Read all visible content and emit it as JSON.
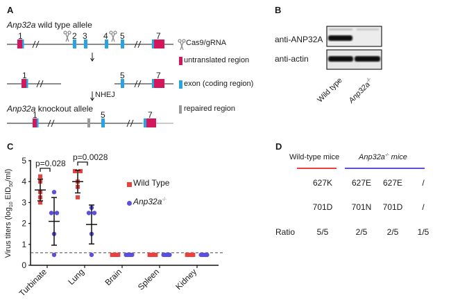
{
  "colors": {
    "utr": "#d4175c",
    "exon": "#2aa4e0",
    "repaired": "#9a9a9a",
    "wild_type": "#e8413e",
    "knockout": "#5a4fe0",
    "line": "#1a1a1a",
    "scissors": "#8c8c8c"
  },
  "panel_a": {
    "letter": "A",
    "wt_title_gene": "Anp32a",
    "wt_title_rest": " wild type allele",
    "ko_title_gene": "Anp32a",
    "ko_title_rest": " knockout allele",
    "nhej_label": "NHEJ",
    "wt_exon_labels": [
      "1",
      "2",
      "3",
      "4",
      "5",
      "7"
    ],
    "cut_exon_labels": [
      "1",
      "5",
      "7"
    ],
    "ko_exon_labels": [
      "1",
      "5",
      "7"
    ],
    "legend": [
      {
        "icon": "scissors-icon",
        "label": "Cas9/gRNA"
      },
      {
        "icon": "utr-swatch",
        "label": "untranslated region"
      },
      {
        "icon": "exon-swatch",
        "label": "exon (coding region)"
      },
      {
        "icon": "repaired-swatch",
        "label": "repaired region"
      }
    ]
  },
  "panel_b": {
    "letter": "B",
    "rows": [
      "anti-ANP32A",
      "anti-actin"
    ],
    "lanes": [
      "Wild type",
      "Anp32a"
    ],
    "lane2_superscript": "-/-"
  },
  "chart_data": {
    "type": "scatter",
    "title": "",
    "xlabel": "",
    "ylabel_prefix": "Virus titers (log",
    "ylabel_sub1": "10",
    "ylabel_mid": " EID",
    "ylabel_sub2": "50",
    "ylabel_suffix": "/ml)",
    "ylim": [
      0,
      5
    ],
    "yticks": [
      "0",
      "1",
      "2",
      "3",
      "4",
      "5"
    ],
    "categories": [
      "Turbinate",
      "Lung",
      "Brain",
      "Spleen",
      "Kidney"
    ],
    "detection_limit": 0.6,
    "legend_placement": "right",
    "series": [
      {
        "name": "Wild Type",
        "marker": "square",
        "points": [
          [
            3.0,
            3.25,
            3.5,
            4.0,
            4.25
          ],
          [
            3.25,
            3.75,
            4.0,
            4.5,
            4.5
          ],
          [
            0.5,
            0.5,
            0.5,
            0.5,
            0.5
          ],
          [
            0.5,
            0.5,
            0.5,
            0.5,
            0.5
          ],
          [
            0.5,
            0.5,
            0.5,
            0.5,
            0.5
          ]
        ],
        "mean": [
          3.6,
          4.0,
          null,
          null,
          null
        ],
        "sd": [
          0.52,
          0.54,
          null,
          null,
          null
        ]
      },
      {
        "name": "Anp32a",
        "name_superscript": "-/-",
        "marker": "circle",
        "points": [
          [
            0.5,
            1.5,
            2.5,
            2.5,
            3.5
          ],
          [
            0.5,
            1.5,
            2.5,
            2.5,
            2.75
          ],
          [
            0.5,
            0.5,
            0.5,
            0.5,
            0.5
          ],
          [
            0.5,
            0.5,
            0.5,
            0.5,
            0.5
          ],
          [
            0.5,
            0.5,
            0.5,
            0.5,
            0.5
          ]
        ],
        "mean": [
          2.1,
          1.95,
          null,
          null,
          null
        ],
        "sd": [
          1.14,
          0.93,
          null,
          null,
          null
        ]
      }
    ],
    "annotations": [
      {
        "category": "Turbinate",
        "text": "p=0.028"
      },
      {
        "category": "Lung",
        "text": "p=0.0028"
      }
    ]
  },
  "panel_c": {
    "letter": "C"
  },
  "panel_d": {
    "letter": "D",
    "header_wt": "Wild-type mice",
    "header_ko_gene": "Anp32a",
    "header_ko_sup": "-/-",
    "header_ko_rest": " mice",
    "row627": [
      "627K",
      "627E",
      "627E",
      "/"
    ],
    "row701": [
      "701D",
      "701N",
      "701D",
      "/"
    ],
    "ratio_label": "Ratio",
    "ratios": [
      "5/5",
      "2/5",
      "2/5",
      "1/5"
    ]
  }
}
